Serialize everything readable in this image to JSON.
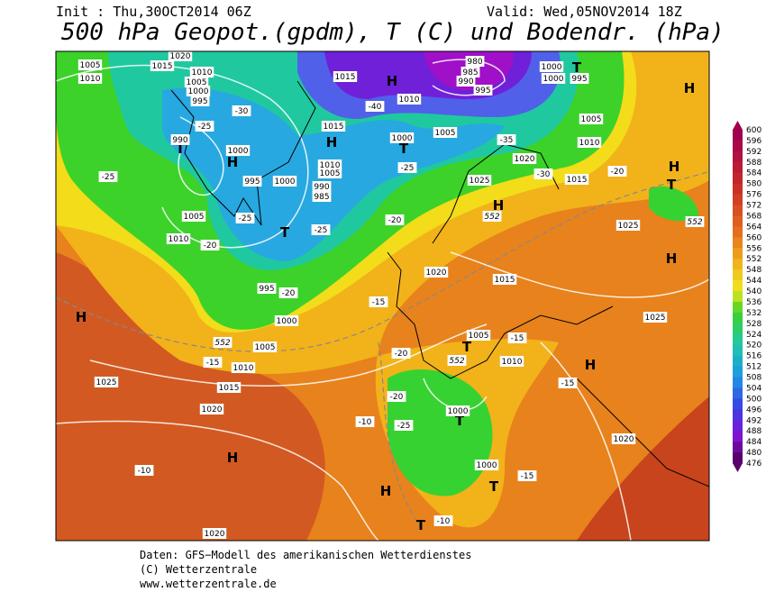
{
  "header": {
    "init": "Init : Thu,30OCT2014 06Z",
    "valid": "Valid: Wed,05NOV2014 18Z",
    "title": "500 hPa Geopot.(gpdm), T (C) und Bodendr. (hPa)"
  },
  "colorbar": {
    "labels": [
      "600",
      "596",
      "592",
      "588",
      "584",
      "580",
      "576",
      "572",
      "568",
      "564",
      "560",
      "556",
      "552",
      "548",
      "544",
      "540",
      "536",
      "532",
      "528",
      "524",
      "520",
      "516",
      "512",
      "508",
      "504",
      "500",
      "496",
      "492",
      "488",
      "484",
      "480",
      "476"
    ]
  },
  "map_labels": [
    "H",
    "H",
    "H",
    "H",
    "H",
    "H",
    "H",
    "H",
    "H",
    "H",
    "H",
    "T",
    "T",
    "T",
    "T",
    "T",
    "T",
    "T",
    "T",
    "T",
    "1020",
    "1015",
    "1005",
    "1010",
    "1010",
    "1005",
    "1000",
    "995",
    "990",
    "1000",
    "995",
    "1000",
    "990",
    "985",
    "1005",
    "1010",
    "995",
    "1000",
    "1005",
    "1010",
    "1015",
    "1025",
    "1020",
    "1015",
    "1010",
    "1015",
    "1000",
    "1005",
    "1010",
    "1005",
    "1025",
    "1020",
    "1015",
    "1010",
    "1005",
    "1000",
    "1000",
    "995",
    "980",
    "985",
    "990",
    "995",
    "1025",
    "1025",
    "1020",
    "1015",
    "1005",
    "1010",
    "1000",
    "1000",
    "1020",
    "1020",
    "-25",
    "-30",
    "-25",
    "-25",
    "-20",
    "-25",
    "-20",
    "-15",
    "-20",
    "-40",
    "-35",
    "-30",
    "-25",
    "-20",
    "-20",
    "-15",
    "-15",
    "-15",
    "-20",
    "-10",
    "-10",
    "-25",
    "-15",
    "-10",
    "552",
    "552",
    "552",
    "552"
  ],
  "footer": {
    "lines": [
      "Daten: GFS−Modell des amerikanischen Wetterdienstes",
      "(C) Wetterzentrale",
      "www.wetterzentrale.de"
    ]
  }
}
